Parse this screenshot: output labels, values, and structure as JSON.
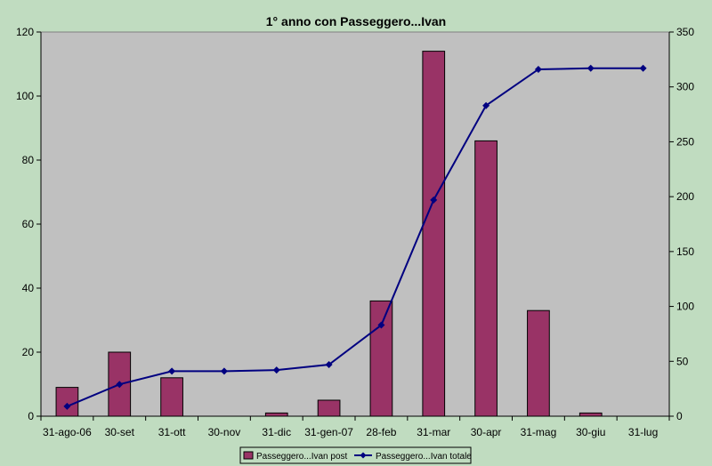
{
  "colors": {
    "background": "#c0dcc0",
    "plot_area": "#c0c0c0",
    "bar": "#993366",
    "line": "#000080"
  },
  "chart_data": {
    "type": "bar",
    "title": "1° anno con Passeggero...Ivan",
    "categories": [
      "31-ago-06",
      "30-set",
      "31-ott",
      "30-nov",
      "31-dic",
      "31-gen-07",
      "28-feb",
      "31-mar",
      "30-apr",
      "31-mag",
      "30-giu",
      "31-lug"
    ],
    "series": [
      {
        "name": "Passeggero...Ivan post",
        "type": "bar",
        "axis": "left",
        "values": [
          9,
          20,
          12,
          0,
          1,
          5,
          36,
          114,
          86,
          33,
          1,
          0
        ]
      },
      {
        "name": "Passeggero...Ivan totale",
        "type": "line",
        "axis": "right",
        "marker": "diamond",
        "values": [
          9,
          29,
          41,
          41,
          42,
          47,
          83,
          197,
          283,
          316,
          317,
          317
        ]
      }
    ],
    "ylim_left": [
      0,
      120
    ],
    "yticks_left": [
      "0",
      "20",
      "40",
      "60",
      "80",
      "100",
      "120"
    ],
    "ylim_right": [
      0,
      350
    ],
    "yticks_right": [
      "0",
      "50",
      "100",
      "150",
      "200",
      "250",
      "300",
      "350"
    ],
    "grid": false,
    "legend_position": "bottom"
  }
}
